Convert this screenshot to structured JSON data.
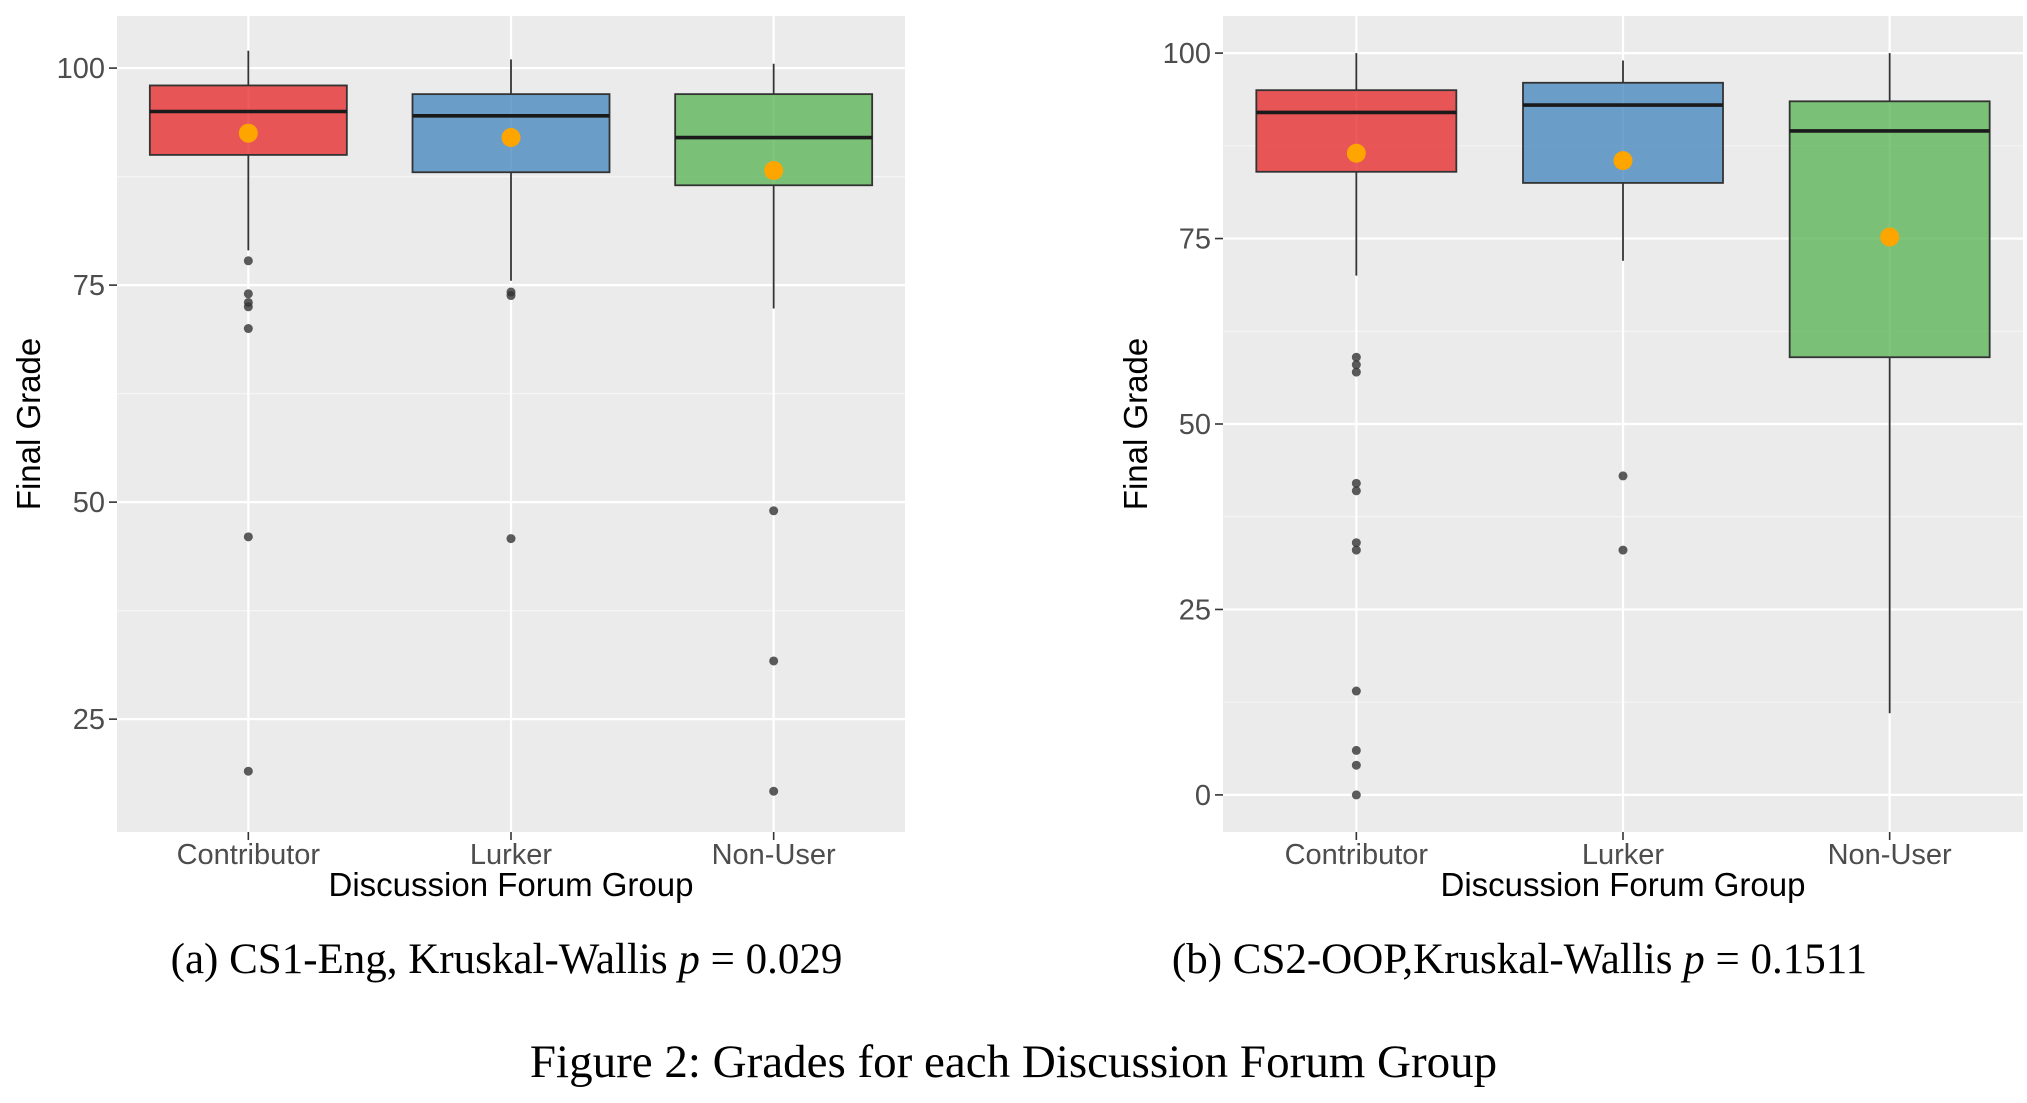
{
  "figure": {
    "caption": "Figure 2: Grades for each Discussion Forum Group"
  },
  "colors": {
    "panel_bg": "#ebebeb",
    "grid_major": "#ffffff",
    "Contributor": "#e41a1c",
    "Lurker": "#377eb8",
    "Non-User": "#4daf4a",
    "mean_point": "#ffa500",
    "outlier": "#333333",
    "median_line": "#1a1a1a"
  },
  "chart_data": [
    {
      "type": "box",
      "subcaption_prefix": "(a) CS1-Eng, Kruskal-Wallis",
      "p_symbol": "p",
      "p_relation": "=",
      "p_value": "0.029",
      "xlabel": "Discussion Forum Group",
      "ylabel": "Final Grade",
      "categories": [
        "Contributor",
        "Lurker",
        "Non-User"
      ],
      "ylim": [
        12,
        106
      ],
      "yticks": [
        25,
        50,
        75,
        100
      ],
      "grid": true,
      "series": [
        {
          "category": "Contributor",
          "whisker_low": 79,
          "q1": 90,
          "median": 95,
          "q3": 98,
          "whisker_high": 102,
          "mean": 92.5,
          "outliers": [
            77.8,
            74,
            73,
            72.5,
            70,
            46,
            19
          ]
        },
        {
          "category": "Lurker",
          "whisker_low": 75.5,
          "q1": 88,
          "median": 94.5,
          "q3": 97,
          "whisker_high": 101,
          "mean": 92,
          "outliers": [
            74.2,
            73.8,
            45.8
          ]
        },
        {
          "category": "Non-User",
          "whisker_low": 72.3,
          "q1": 86.5,
          "median": 92,
          "q3": 97,
          "whisker_high": 100.5,
          "mean": 88.2,
          "outliers": [
            49,
            31.7,
            16.7
          ]
        }
      ]
    },
    {
      "type": "box",
      "subcaption_prefix": "(b) CS2-OOP,Kruskal-Wallis",
      "p_symbol": "p",
      "p_relation": "=",
      "p_value": "0.1511",
      "xlabel": "Discussion Forum Group",
      "ylabel": "Final Grade",
      "categories": [
        "Contributor",
        "Lurker",
        "Non-User"
      ],
      "ylim": [
        -5,
        105
      ],
      "yticks": [
        0,
        25,
        50,
        75,
        100
      ],
      "grid": true,
      "series": [
        {
          "category": "Contributor",
          "whisker_low": 70,
          "q1": 84,
          "median": 92,
          "q3": 95,
          "whisker_high": 100,
          "mean": 86.5,
          "outliers": [
            59,
            58,
            57,
            42,
            41,
            34,
            33,
            14,
            6,
            4,
            0
          ]
        },
        {
          "category": "Lurker",
          "whisker_low": 72,
          "q1": 82.5,
          "median": 93,
          "q3": 96,
          "whisker_high": 99,
          "mean": 85.5,
          "outliers": [
            43,
            33
          ]
        },
        {
          "category": "Non-User",
          "whisker_low": 11,
          "q1": 59,
          "median": 89.5,
          "q3": 93.5,
          "whisker_high": 100,
          "mean": 75.2,
          "outliers": []
        }
      ]
    }
  ]
}
